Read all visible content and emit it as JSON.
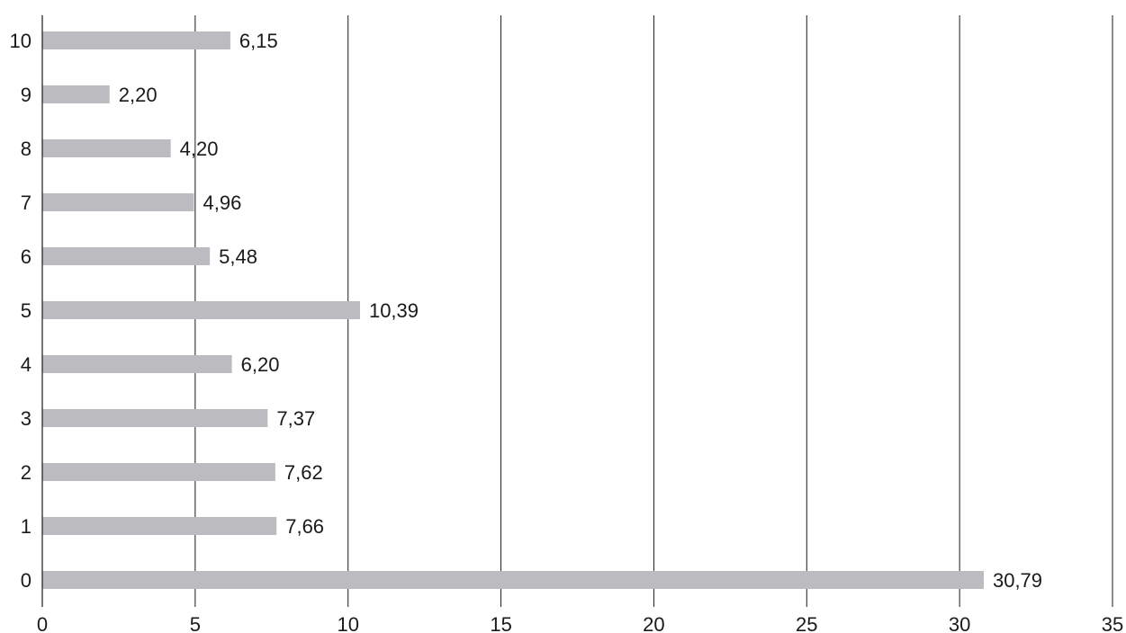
{
  "chart_data": {
    "type": "bar",
    "orientation": "horizontal",
    "categories": [
      "0",
      "1",
      "2",
      "3",
      "4",
      "5",
      "6",
      "7",
      "8",
      "9",
      "10"
    ],
    "values": [
      30.79,
      7.66,
      7.62,
      7.37,
      6.2,
      10.39,
      5.48,
      4.96,
      4.2,
      2.2,
      6.15
    ],
    "value_labels": [
      "30,79",
      "7,66",
      "7,62",
      "7,37",
      "6,20",
      "10,39",
      "5,48",
      "4,96",
      "4,20",
      "2,20",
      "6,15"
    ],
    "x_ticks": [
      "0",
      "5",
      "10",
      "15",
      "20",
      "25",
      "30",
      "35"
    ],
    "xlim": [
      0,
      35
    ],
    "title": "",
    "xlabel": "",
    "ylabel": "",
    "grid": "vertical",
    "legend": "none",
    "colors": {
      "bar": "#bcbcc0",
      "grid": "#1a1a1a",
      "text": "#1a1a1a"
    }
  }
}
